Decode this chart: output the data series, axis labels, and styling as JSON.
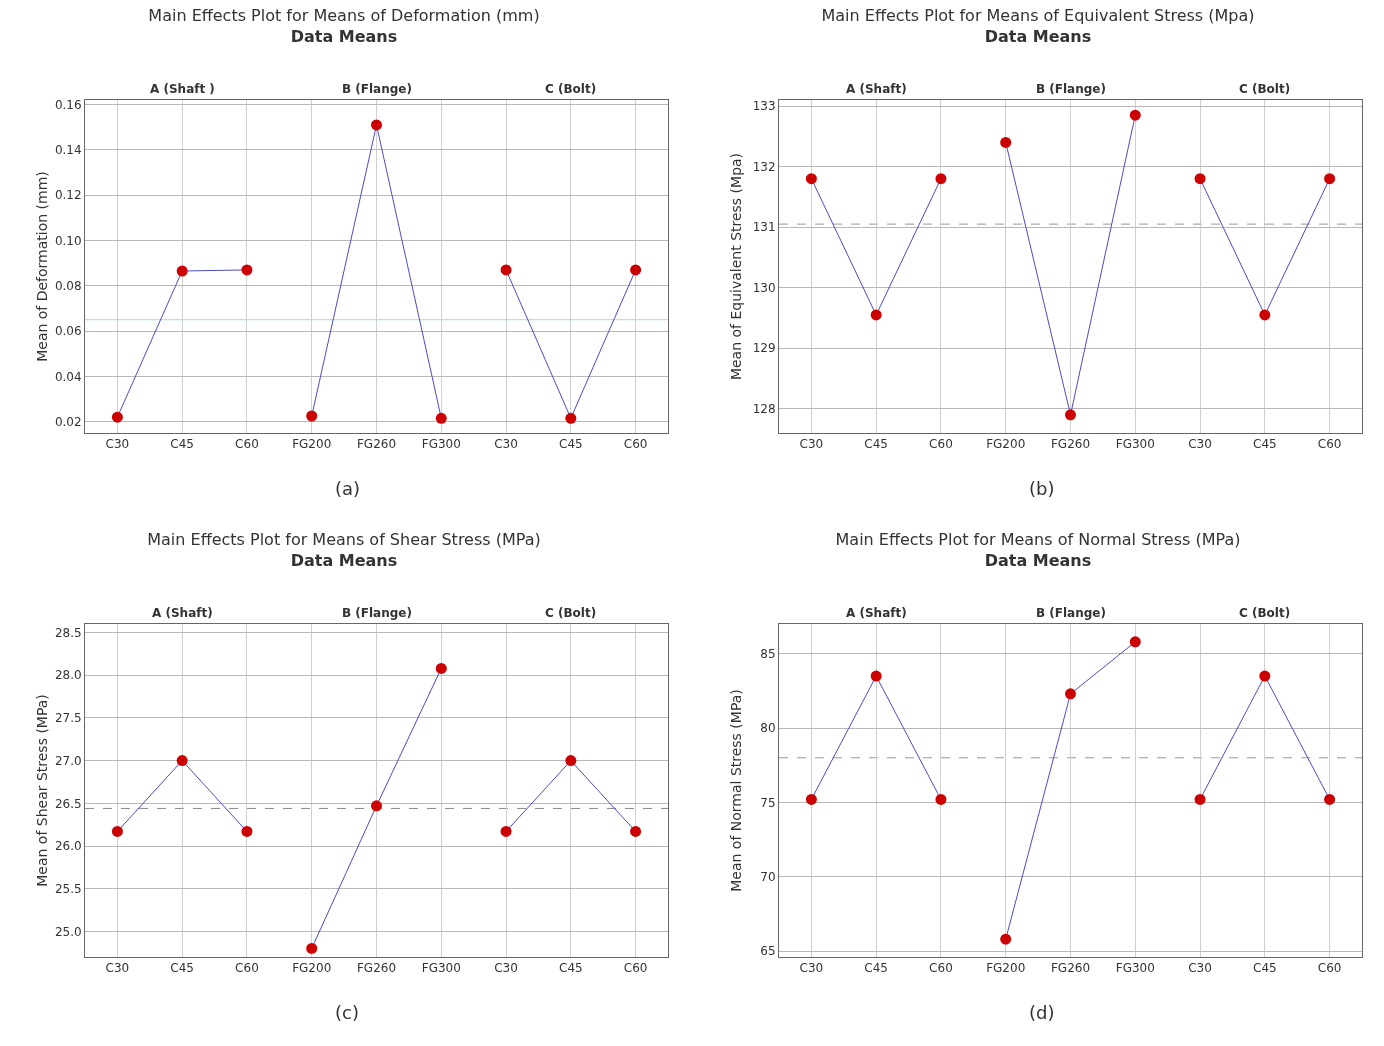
{
  "chart_data": [
    {
      "type": "line",
      "title": "Main Effects Plot for Means of Deformation (mm)",
      "subtitle": "Data Means",
      "ylabel": "Mean of Deformation (mm)",
      "categories": [
        "C30",
        "C45",
        "C60",
        "FG200",
        "FG260",
        "FG300",
        "C30",
        "C45",
        "C60"
      ],
      "series": [
        {
          "color": "#4b4bc8",
          "colors": [
            "#cc0000",
            "#cc0000",
            "#cc0000",
            null,
            null,
            null,
            null,
            null,
            null
          ],
          "values": [
            0.022,
            0.0865,
            0.087,
            null,
            null,
            null,
            null,
            null,
            null
          ]
        },
        {
          "color": "#4b4bc8",
          "colors": [
            null,
            null,
            null,
            "#cc0000",
            "#cc0000",
            "#cc0000",
            null,
            null,
            null
          ],
          "values": [
            null,
            null,
            null,
            0.0225,
            0.151,
            0.0215,
            null,
            null,
            null
          ]
        },
        {
          "color": "#4b4bc8",
          "colors": [
            null,
            null,
            null,
            null,
            null,
            null,
            "#cc0000",
            "#cc0000",
            "#cc0000"
          ],
          "values": [
            null,
            null,
            null,
            null,
            null,
            null,
            0.087,
            0.0215,
            0.087
          ]
        }
      ],
      "ylim": [
        0.015,
        0.162
      ],
      "yticks": [
        {
          "value": 0.02,
          "label": "0.02"
        },
        {
          "value": 0.04,
          "label": "0.04"
        },
        {
          "value": 0.06,
          "label": "0.06"
        },
        {
          "value": 0.08,
          "label": "0.08"
        },
        {
          "value": 0.1,
          "label": "0.10"
        },
        {
          "value": 0.12,
          "label": "0.12"
        },
        {
          "value": 0.14,
          "label": "0.14"
        },
        {
          "value": 0.16,
          "label": "0.16"
        }
      ],
      "ref_lines": [
        {
          "axis": "y",
          "value": 0.065,
          "color": "#a8d8d8",
          "line_style": "solid"
        }
      ],
      "annotations": [
        "A (Shaft )",
        "B (Flange)",
        "C (Bolt)",
        "(a)"
      ],
      "grid": true,
      "marker": "circle",
      "line_style": "solid"
    },
    {
      "type": "line",
      "title": "Main Effects Plot for Means of Equivalent Stress (Mpa)",
      "subtitle": "Data Means",
      "ylabel": "Mean of Equivalent Stress (Mpa)",
      "categories": [
        "C30",
        "C45",
        "C60",
        "FG200",
        "FG260",
        "FG300",
        "C30",
        "C45",
        "C60"
      ],
      "series": [
        {
          "color": "#4b4bc8",
          "colors": [
            "#cc0000",
            "#cc0000",
            "#cc0000",
            null,
            null,
            null,
            null,
            null,
            null
          ],
          "values": [
            131.8,
            129.55,
            131.8,
            null,
            null,
            null,
            null,
            null,
            null
          ]
        },
        {
          "color": "#4b4bc8",
          "colors": [
            null,
            null,
            null,
            "#cc0000",
            "#cc0000",
            "#cc0000",
            null,
            null,
            null
          ],
          "values": [
            null,
            null,
            null,
            132.4,
            127.9,
            132.85,
            null,
            null,
            null
          ]
        },
        {
          "color": "#4b4bc8",
          "colors": [
            null,
            null,
            null,
            null,
            null,
            null,
            "#cc0000",
            "#cc0000",
            "#cc0000"
          ],
          "values": [
            null,
            null,
            null,
            null,
            null,
            null,
            131.8,
            129.55,
            131.8
          ]
        }
      ],
      "ylim": [
        127.6,
        133.1
      ],
      "yticks": [
        128,
        129,
        130,
        131,
        132,
        133
      ],
      "ref_lines": [
        {
          "axis": "y",
          "value": 131.05,
          "color": "#999999",
          "line_style": "dashed"
        }
      ],
      "annotations": [
        "A (Shaft)",
        "B (Flange)",
        "C (Bolt)",
        "(b)"
      ],
      "grid": true,
      "marker": "circle",
      "line_style": "solid"
    },
    {
      "type": "line",
      "title": "Main Effects Plot for Means of Shear Stress (MPa)",
      "subtitle": "Data Means",
      "ylabel": "Mean of Shear Stress (MPa)",
      "categories": [
        "C30",
        "C45",
        "C60",
        "FG200",
        "FG260",
        "FG300",
        "C30",
        "C45",
        "C60"
      ],
      "series": [
        {
          "color": "#4b4bc8",
          "colors": [
            "#cc0000",
            "#cc0000",
            "#cc0000",
            null,
            null,
            null,
            null,
            null,
            null
          ],
          "values": [
            26.17,
            27.0,
            26.17,
            null,
            null,
            null,
            null,
            null,
            null
          ]
        },
        {
          "color": "#4b4bc8",
          "colors": [
            null,
            null,
            null,
            "#cc0000",
            "#cc0000",
            "#cc0000",
            null,
            null,
            null
          ],
          "values": [
            null,
            null,
            null,
            24.8,
            26.47,
            28.08,
            null,
            null,
            null
          ]
        },
        {
          "color": "#4b4bc8",
          "colors": [
            null,
            null,
            null,
            null,
            null,
            null,
            "#cc0000",
            "#cc0000",
            "#cc0000"
          ],
          "values": [
            null,
            null,
            null,
            null,
            null,
            null,
            26.17,
            27.0,
            26.17
          ]
        }
      ],
      "ylim": [
        24.7,
        28.6
      ],
      "yticks": [
        {
          "value": 25,
          "label": "25.0"
        },
        25.5,
        {
          "value": 26,
          "label": "26.0"
        },
        26.5,
        {
          "value": 27,
          "label": "27.0"
        },
        27.5,
        {
          "value": 28,
          "label": "28.0"
        },
        28.5
      ],
      "ref_lines": [
        {
          "axis": "y",
          "value": 26.44,
          "color": "#888888",
          "line_style": "dashed"
        }
      ],
      "annotations": [
        "A (Shaft)",
        "B (Flange)",
        "C (Bolt)",
        "(c)"
      ],
      "grid": true,
      "marker": "circle",
      "line_style": "solid"
    },
    {
      "type": "line",
      "title": "Main Effects Plot for Means of Normal Stress (MPa)",
      "subtitle": "Data Means",
      "ylabel": "Mean of Normal Stress (MPa)",
      "categories": [
        "C30",
        "C45",
        "C60",
        "FG200",
        "FG260",
        "FG300",
        "C30",
        "C45",
        "C60"
      ],
      "series": [
        {
          "color": "#4b4bc8",
          "colors": [
            "#cc0000",
            "#cc0000",
            "#cc0000",
            null,
            null,
            null,
            null,
            null,
            null
          ],
          "values": [
            75.2,
            83.5,
            75.2,
            null,
            null,
            null,
            null,
            null,
            null
          ]
        },
        {
          "color": "#4b4bc8",
          "colors": [
            null,
            null,
            null,
            "#cc0000",
            "#cc0000",
            "#cc0000",
            null,
            null,
            null
          ],
          "values": [
            null,
            null,
            null,
            65.8,
            82.3,
            85.8,
            null,
            null,
            null
          ]
        },
        {
          "color": "#4b4bc8",
          "colors": [
            null,
            null,
            null,
            null,
            null,
            null,
            "#cc0000",
            "#cc0000",
            "#cc0000"
          ],
          "values": [
            null,
            null,
            null,
            null,
            null,
            null,
            75.2,
            83.5,
            75.2
          ]
        }
      ],
      "ylim": [
        64.6,
        87
      ],
      "yticks": [
        65,
        70,
        75,
        80,
        85
      ],
      "ref_lines": [
        {
          "axis": "y",
          "value": 78.0,
          "color": "#999999",
          "line_style": "dashed"
        }
      ],
      "annotations": [
        "A (Shaft)",
        "B (Flange)",
        "C (Bolt)",
        "(d)"
      ],
      "grid": true,
      "marker": "circle",
      "line_style": "solid"
    }
  ]
}
